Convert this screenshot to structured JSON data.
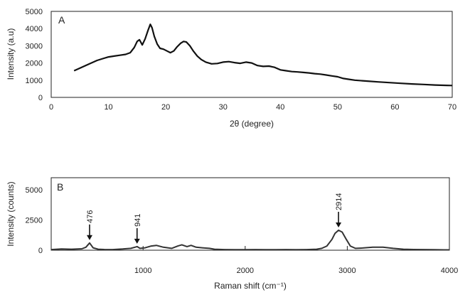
{
  "chart_data": [
    {
      "type": "line",
      "panel_label": "A",
      "title": "",
      "xlabel": "2θ (degree)",
      "ylabel": "Intensity (a.u)",
      "xlim": [
        0,
        70
      ],
      "ylim": [
        0,
        5000
      ],
      "x_ticks": [
        0,
        10,
        20,
        30,
        40,
        50,
        60,
        70
      ],
      "y_ticks": [
        0,
        1000,
        2000,
        3000,
        4000,
        5000
      ],
      "grid": false,
      "line_color": "#111111",
      "series": [
        {
          "x": [
            4,
            5,
            6,
            7,
            8,
            9,
            10,
            11,
            12,
            13,
            13.8,
            14.5,
            15,
            15.4,
            15.9,
            16.4,
            16.9,
            17.3,
            17.6,
            18,
            18.5,
            19,
            19.6,
            20.2,
            20.8,
            21.4,
            22,
            22.6,
            23.1,
            23.6,
            24.2,
            24.8,
            25.5,
            26.2,
            27,
            28,
            29,
            30,
            31,
            32,
            33,
            34,
            35,
            36,
            37,
            38,
            39,
            40,
            41,
            42,
            43,
            44,
            45,
            46,
            47,
            48,
            49,
            50,
            51,
            52,
            53,
            55,
            57,
            59,
            61,
            63,
            65,
            67,
            69,
            70
          ],
          "y": [
            1550,
            1700,
            1850,
            2000,
            2150,
            2250,
            2350,
            2400,
            2450,
            2500,
            2600,
            2900,
            3250,
            3350,
            3050,
            3400,
            3900,
            4250,
            4050,
            3550,
            3100,
            2850,
            2800,
            2700,
            2600,
            2700,
            2950,
            3150,
            3250,
            3220,
            3000,
            2700,
            2400,
            2200,
            2050,
            1950,
            1970,
            2050,
            2080,
            2020,
            1980,
            2050,
            2000,
            1850,
            1800,
            1820,
            1750,
            1600,
            1550,
            1500,
            1480,
            1450,
            1420,
            1380,
            1350,
            1300,
            1250,
            1200,
            1100,
            1050,
            1000,
            950,
            900,
            860,
            820,
            780,
            750,
            720,
            700,
            690
          ]
        }
      ]
    },
    {
      "type": "line",
      "panel_label": "B",
      "title": "",
      "xlabel": "Raman shift (cm⁻¹)",
      "ylabel": "Intensity (counts)",
      "xlim": [
        100,
        4000
      ],
      "ylim": [
        0,
        6000
      ],
      "x_ticks": [
        1000,
        2000,
        3000,
        4000
      ],
      "y_ticks": [
        0,
        2500,
        5000
      ],
      "grid": false,
      "line_color": "#333333",
      "peak_annotations": [
        {
          "label": "476",
          "x": 476,
          "y": 600
        },
        {
          "label": "941",
          "x": 941,
          "y": 300
        },
        {
          "label": "2914",
          "x": 2914,
          "y": 1650
        }
      ],
      "series": [
        {
          "x": [
            100,
            200,
            300,
            400,
            440,
            476,
            510,
            560,
            620,
            700,
            800,
            880,
            920,
            941,
            970,
            1020,
            1080,
            1130,
            1200,
            1280,
            1340,
            1380,
            1430,
            1470,
            1520,
            1580,
            1650,
            1700,
            1800,
            1900,
            2000,
            2100,
            2200,
            2300,
            2400,
            2500,
            2600,
            2700,
            2750,
            2800,
            2850,
            2880,
            2914,
            2950,
            2990,
            3030,
            3080,
            3150,
            3250,
            3350,
            3450,
            3550,
            3650,
            3750,
            3850,
            3950,
            4000
          ],
          "y": [
            50,
            100,
            80,
            120,
            250,
            600,
            200,
            80,
            60,
            50,
            100,
            150,
            250,
            300,
            150,
            200,
            350,
            400,
            250,
            150,
            350,
            450,
            300,
            400,
            250,
            200,
            150,
            80,
            50,
            40,
            40,
            50,
            40,
            40,
            50,
            40,
            50,
            80,
            150,
            350,
            900,
            1400,
            1650,
            1500,
            900,
            350,
            150,
            180,
            250,
            250,
            150,
            80,
            60,
            50,
            40,
            30,
            30
          ]
        }
      ]
    }
  ]
}
